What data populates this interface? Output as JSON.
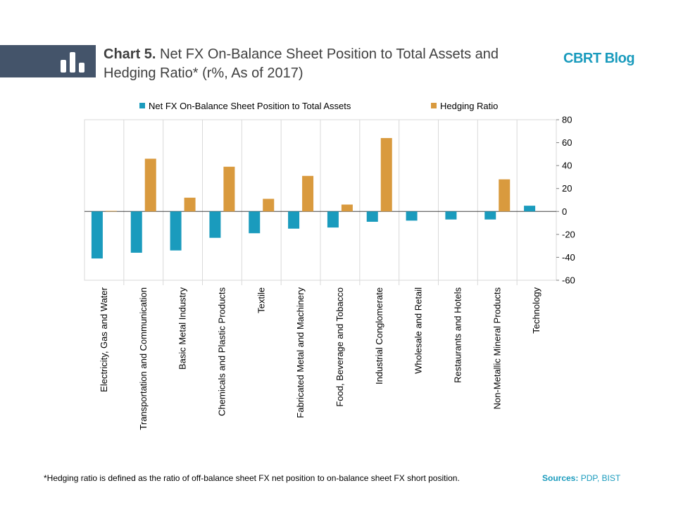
{
  "header": {
    "title_prefix": "Chart 5.",
    "title_text": "Net FX On-Balance Sheet Position to Total Assets and Hedging Ratio* (r%, As of 2017)",
    "brand": "CBRT Blog",
    "band_color": "#44546a",
    "logo_icon": "bar-chart-icon"
  },
  "footer": {
    "footnote": "*Hedging ratio is defined as the ratio of off-balance sheet FX net position to on-balance sheet FX short position.",
    "sources_label": "Sources:",
    "sources_text": "PDP, BIST"
  },
  "chart_data": {
    "type": "bar",
    "categories": [
      "Electricity, Gas and Water",
      "Transportation and Communication",
      "Basic Metal Industry",
      "Chemicals and Plastic Products",
      "Textile",
      "Fabricated Metal and Machinery",
      "Food, Beverage and Tobacco",
      "Industrial Conglomerate",
      "Wholesale and Retail",
      "Restaurants and Hotels",
      "Non-Metallic Mineral Products",
      "Technology"
    ],
    "series": [
      {
        "name": "Net FX On-Balance Sheet Position to Total Assets",
        "color": "#1a9bbd",
        "values": [
          -41,
          -36,
          -34,
          -23,
          -19,
          -15,
          -14,
          -9,
          -8,
          -7,
          -7,
          5
        ]
      },
      {
        "name": "Hedging Ratio",
        "color": "#d99a3e",
        "values": [
          0.5,
          46,
          12,
          39,
          11,
          31,
          6,
          64,
          0,
          0,
          28,
          0
        ]
      }
    ],
    "ylim": [
      -60,
      80
    ],
    "yticks": [
      80,
      60,
      40,
      20,
      0,
      -20,
      -40,
      -60
    ],
    "y_axis_side": "right",
    "legend_position": "top",
    "grid": "vertical category separators"
  }
}
